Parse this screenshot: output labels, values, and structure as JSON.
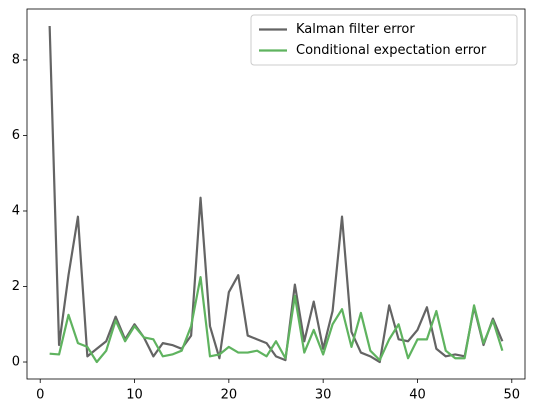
{
  "chart_data": {
    "type": "line",
    "x": [
      1,
      2,
      3,
      4,
      5,
      6,
      7,
      8,
      9,
      10,
      11,
      12,
      13,
      14,
      15,
      16,
      17,
      18,
      19,
      20,
      21,
      22,
      23,
      24,
      25,
      26,
      27,
      28,
      29,
      30,
      31,
      32,
      33,
      34,
      35,
      36,
      37,
      38,
      39,
      40,
      41,
      42,
      43,
      44,
      45,
      46,
      47,
      48,
      49
    ],
    "series": [
      {
        "name": "Kalman filter error",
        "color": "#646464",
        "values": [
          8.9,
          0.45,
          2.3,
          3.85,
          0.15,
          0.35,
          0.55,
          1.2,
          0.6,
          1.0,
          0.65,
          0.15,
          0.5,
          0.45,
          0.35,
          0.7,
          4.35,
          0.95,
          0.1,
          1.85,
          2.3,
          0.7,
          0.6,
          0.5,
          0.15,
          0.05,
          2.05,
          0.55,
          1.6,
          0.35,
          1.35,
          3.85,
          0.8,
          0.25,
          0.15,
          0.0,
          1.5,
          0.6,
          0.55,
          0.85,
          1.45,
          0.35,
          0.15,
          0.2,
          0.15,
          1.45,
          0.45,
          1.15,
          0.55
        ]
      },
      {
        "name": "Conditional expectation error",
        "color": "#5fb35f",
        "values": [
          0.22,
          0.2,
          1.25,
          0.5,
          0.4,
          0.0,
          0.3,
          1.1,
          0.55,
          0.95,
          0.65,
          0.6,
          0.15,
          0.2,
          0.3,
          0.95,
          2.25,
          0.15,
          0.2,
          0.4,
          0.25,
          0.25,
          0.3,
          0.15,
          0.55,
          0.1,
          1.75,
          0.25,
          0.85,
          0.2,
          1.0,
          1.4,
          0.4,
          1.3,
          0.3,
          0.05,
          0.6,
          1.0,
          0.1,
          0.6,
          0.6,
          1.35,
          0.3,
          0.1,
          0.1,
          1.5,
          0.5,
          1.1,
          0.3
        ]
      }
    ],
    "xlim": [
      -1.4,
      51.4
    ],
    "xticks": [
      0,
      10,
      20,
      30,
      40,
      50
    ],
    "ylim": [
      -0.45,
      9.35
    ],
    "yticks": [
      0,
      2,
      4,
      6,
      8
    ],
    "legend": "upper right"
  }
}
